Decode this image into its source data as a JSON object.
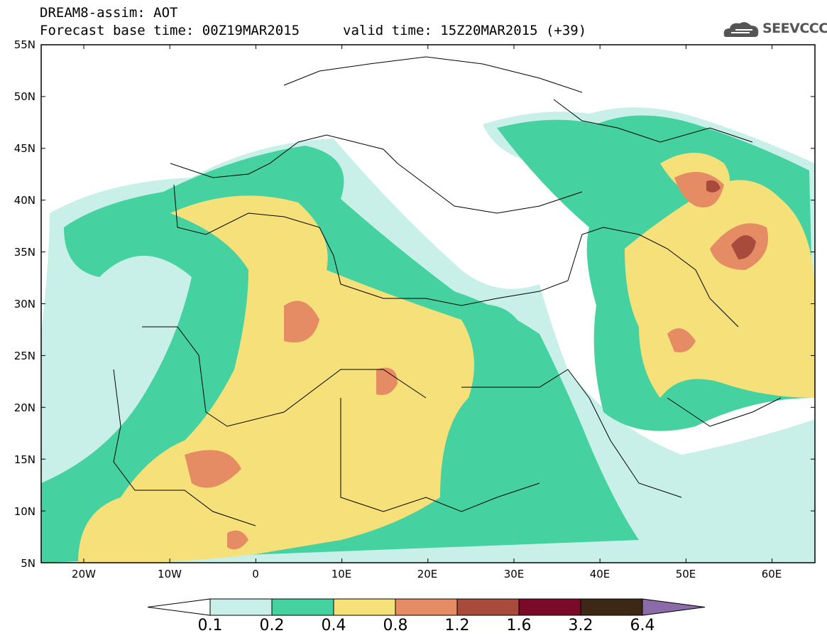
{
  "header": {
    "line1": "DREAM8-assim: AOT",
    "line2": "Forecast base time: 00Z19MAR2015",
    "line3": "valid time: 15Z20MAR2015 (+39)",
    "logo_text": "SEEVCCC"
  },
  "axes": {
    "lat_labels": [
      "55N",
      "50N",
      "45N",
      "40N",
      "35N",
      "30N",
      "25N",
      "20N",
      "15N",
      "10N",
      "5N"
    ],
    "lon_labels": [
      "20W",
      "10W",
      "0",
      "10E",
      "20E",
      "30E",
      "40E",
      "50E",
      "60E"
    ]
  },
  "legend": {
    "labels": [
      "0.1",
      "0.2",
      "0.4",
      "0.8",
      "1.2",
      "1.6",
      "3.2",
      "6.4"
    ],
    "colors": [
      "#ffffff",
      "#c8f0e8",
      "#46d2a0",
      "#f5e07a",
      "#e68c64",
      "#a84a3c",
      "#7a0a28",
      "#3c2814",
      "#8c6ca8"
    ]
  },
  "map": {
    "variable": "AOT",
    "region_lon": [
      -25,
      65
    ],
    "region_lat": [
      5,
      55
    ],
    "colors": {
      "v01": "#c8f0e8",
      "v02": "#46d2a0",
      "v04": "#f5e07a",
      "v08": "#e68c64",
      "v12": "#a84a3c",
      "border": "#000000"
    }
  }
}
